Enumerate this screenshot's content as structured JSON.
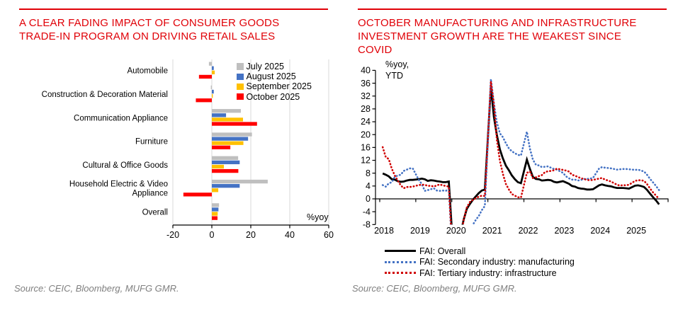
{
  "accent_red": "#e00007",
  "left_panel": {
    "title_lines": [
      "A CLEAR FADING IMPACT OF CONSUMER GOODS",
      "TRADE-IN PROGRAM ON DRIVING RETAIL SALES"
    ],
    "axis_unit": "%yoy",
    "source": "Source: CEIC, Bloomberg, MUFG GMR.",
    "chart_data": {
      "type": "bar",
      "orientation": "horizontal",
      "xlabel": "%yoy",
      "xlim": [
        -20,
        60
      ],
      "x_ticks": [
        -20,
        0,
        20,
        40,
        60
      ],
      "grid": true,
      "legend_position": "top-right",
      "categories": [
        "Automobile",
        "Construction & Decoration Material",
        "Communication Appliance",
        "Furniture",
        "Cultural & Office Goods",
        "Household Electric & Video\nAppliance",
        "Overall"
      ],
      "series": [
        {
          "name": "July 2025",
          "color": "#bfbfbf",
          "values": [
            -1.5,
            -0.5,
            14.9,
            20.6,
            13.5,
            28.7,
            3.7
          ]
        },
        {
          "name": "August 2025",
          "color": "#4472c4",
          "values": [
            1.0,
            1.0,
            7.3,
            18.6,
            14.3,
            14.3,
            3.4
          ]
        },
        {
          "name": "September 2025",
          "color": "#ffc000",
          "values": [
            1.5,
            0.5,
            16.0,
            16.2,
            6.2,
            3.3,
            3.0
          ]
        },
        {
          "name": "October 2025",
          "color": "#ff0000",
          "values": [
            -6.6,
            -8.2,
            23.2,
            9.5,
            13.6,
            -14.6,
            2.9
          ]
        }
      ]
    }
  },
  "right_panel": {
    "title_lines": [
      "OCTOBER MANUFACTURING AND INFRASTRUCTURE",
      "INVESTMENT GROWTH ARE THE WEAKEST SINCE",
      "COVID"
    ],
    "axis_unit_lines": [
      "%yoy,",
      "YTD"
    ],
    "source": "Source: CEIC, Bloomberg, MUFG GMR.",
    "chart_data": {
      "type": "line",
      "ylim": [
        -8,
        40
      ],
      "y_tick_step": 4,
      "x_ticks": [
        2018,
        2019,
        2020,
        2021,
        2022,
        2023,
        2024,
        2025
      ],
      "x_start_month": 2,
      "grid": false,
      "legend_position": "bottom",
      "series": [
        {
          "name": "FAI: Overall",
          "color": "#000000",
          "style": "solid",
          "values_by_year": {
            "2018": [
              7.9,
              7.5,
              7.0,
              6.1,
              6.0,
              5.5,
              5.3,
              5.4,
              5.7,
              5.9,
              5.9
            ],
            "2019": [
              6.1,
              6.3,
              6.1,
              5.6,
              5.8,
              5.7,
              5.5,
              5.4,
              5.2,
              5.2,
              5.4
            ],
            "2020": [
              -24.5,
              -16.1,
              -10.3,
              -6.3,
              -3.1,
              -1.6,
              -0.3,
              0.8,
              1.8,
              2.6,
              2.9
            ],
            "2021": [
              35.0,
              25.6,
              19.9,
              15.4,
              12.6,
              10.3,
              8.9,
              7.3,
              6.1,
              5.2,
              4.9
            ],
            "2022": [
              12.2,
              9.3,
              6.8,
              6.2,
              6.1,
              5.7,
              5.8,
              5.9,
              5.8,
              5.3,
              5.1
            ],
            "2023": [
              5.5,
              5.1,
              4.7,
              4.0,
              3.8,
              3.4,
              3.2,
              3.1,
              2.9,
              2.9,
              3.0
            ],
            "2024": [
              4.2,
              4.5,
              4.2,
              4.0,
              3.9,
              3.6,
              3.4,
              3.4,
              3.4,
              3.3,
              3.2
            ],
            "2025": [
              4.1,
              4.2,
              4.0,
              3.7,
              2.8,
              1.6,
              0.5,
              -0.5,
              -1.7
            ]
          }
        },
        {
          "name": "FAI: Secondary industry: manufacturing",
          "color": "#4472c4",
          "style": "dotted",
          "values_by_year": {
            "2018": [
              4.3,
              3.8,
              4.8,
              5.2,
              6.8,
              7.3,
              7.5,
              8.7,
              9.1,
              9.5,
              9.5
            ],
            "2019": [
              5.9,
              4.6,
              2.5,
              2.7,
              3.0,
              3.3,
              2.6,
              2.5,
              2.6,
              2.5,
              3.1
            ],
            "2020": [
              -31.5,
              -25.2,
              -18.8,
              -14.8,
              -11.7,
              -10.2,
              -8.1,
              -6.5,
              -5.3,
              -3.5,
              -2.2
            ],
            "2021": [
              37.3,
              29.8,
              23.8,
              20.4,
              19.2,
              17.3,
              15.7,
              14.8,
              14.2,
              13.7,
              13.5
            ],
            "2022": [
              20.9,
              15.6,
              12.2,
              10.6,
              10.4,
              9.9,
              10.0,
              10.1,
              9.7,
              9.3,
              9.1
            ],
            "2023": [
              8.1,
              7.0,
              6.4,
              6.0,
              6.0,
              5.7,
              5.9,
              6.2,
              6.2,
              6.3,
              6.5
            ],
            "2024": [
              9.4,
              9.9,
              9.7,
              9.6,
              9.5,
              9.3,
              9.1,
              9.2,
              9.3,
              9.3,
              9.2
            ],
            "2025": [
              9.0,
              9.1,
              8.8,
              8.5,
              7.5,
              6.2,
              5.1,
              4.0,
              2.7
            ]
          }
        },
        {
          "name": "FAI: Tertiary industry: infrastructure",
          "color": "#d00000",
          "style": "dotted",
          "values_by_year": {
            "2018": [
              16.1,
              13.0,
              12.4,
              9.4,
              7.3,
              5.7,
              4.2,
              3.3,
              3.7,
              3.7,
              3.8
            ],
            "2019": [
              4.3,
              4.4,
              4.4,
              4.0,
              4.1,
              3.8,
              4.2,
              4.5,
              4.2,
              4.0,
              3.8
            ],
            "2020": [
              -30.3,
              -19.7,
              -11.8,
              -6.3,
              -2.7,
              -1.0,
              -0.3,
              0.2,
              0.7,
              1.0,
              0.9
            ],
            "2021": [
              36.6,
              29.7,
              18.4,
              11.8,
              7.8,
              4.6,
              2.9,
              1.5,
              1.0,
              0.5,
              0.4
            ],
            "2022": [
              8.1,
              8.5,
              6.5,
              6.7,
              7.1,
              7.4,
              8.3,
              8.6,
              8.7,
              8.9,
              9.4
            ],
            "2023": [
              9.0,
              8.8,
              8.5,
              7.5,
              7.2,
              6.8,
              6.4,
              6.2,
              5.9,
              5.8,
              5.9
            ],
            "2024": [
              6.3,
              6.5,
              6.0,
              5.7,
              5.4,
              4.9,
              4.4,
              4.1,
              4.3,
              4.2,
              4.4
            ],
            "2025": [
              5.6,
              5.8,
              5.8,
              5.6,
              4.6,
              3.2,
              2.0,
              1.0,
              0.0
            ]
          }
        }
      ]
    }
  }
}
